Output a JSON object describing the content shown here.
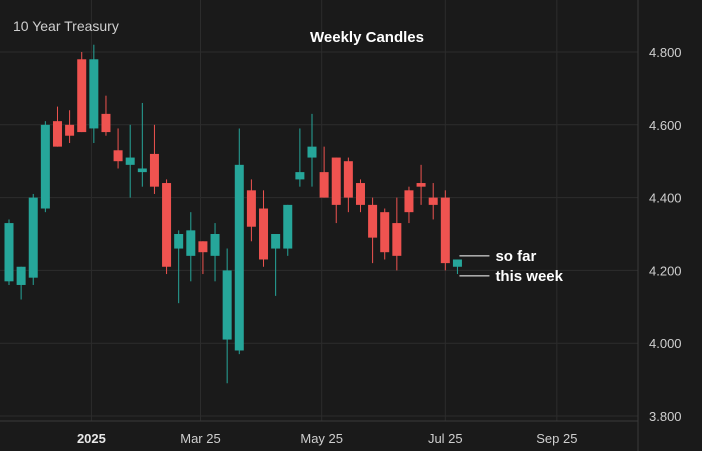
{
  "chart_data": {
    "type": "candlestick",
    "symbol": "10 Year Treasury",
    "title": "Weekly Candles",
    "ylim": [
      3.8,
      4.9
    ],
    "y_ticks": [
      "3.800",
      "4.000",
      "4.200",
      "4.400",
      "4.600",
      "4.800"
    ],
    "y_tick_values": [
      3.8,
      4.0,
      4.2,
      4.4,
      4.6,
      4.8
    ],
    "x_ticks": [
      {
        "label": "2025",
        "index": 6.8,
        "bold": true
      },
      {
        "label": "Mar 25",
        "index": 15.8,
        "bold": false
      },
      {
        "label": "May 25",
        "index": 25.8,
        "bold": false
      },
      {
        "label": "Jul 25",
        "index": 36.0,
        "bold": false
      },
      {
        "label": "Sep 25",
        "index": 45.2,
        "bold": false
      }
    ],
    "colors": {
      "up": "#26a69a",
      "down": "#ef5350"
    },
    "candles": [
      {
        "o": 4.17,
        "h": 4.34,
        "l": 4.16,
        "c": 4.33
      },
      {
        "o": 4.16,
        "h": 4.21,
        "l": 4.12,
        "c": 4.21
      },
      {
        "o": 4.18,
        "h": 4.41,
        "l": 4.16,
        "c": 4.4
      },
      {
        "o": 4.37,
        "h": 4.61,
        "l": 4.36,
        "c": 4.6
      },
      {
        "o": 4.61,
        "h": 4.65,
        "l": 4.54,
        "c": 4.54
      },
      {
        "o": 4.6,
        "h": 4.64,
        "l": 4.55,
        "c": 4.57
      },
      {
        "o": 4.78,
        "h": 4.8,
        "l": 4.58,
        "c": 4.58
      },
      {
        "o": 4.59,
        "h": 4.82,
        "l": 4.55,
        "c": 4.78
      },
      {
        "o": 4.63,
        "h": 4.68,
        "l": 4.57,
        "c": 4.58
      },
      {
        "o": 4.53,
        "h": 4.59,
        "l": 4.48,
        "c": 4.5
      },
      {
        "o": 4.49,
        "h": 4.6,
        "l": 4.4,
        "c": 4.51
      },
      {
        "o": 4.47,
        "h": 4.66,
        "l": 4.43,
        "c": 4.48
      },
      {
        "o": 4.52,
        "h": 4.6,
        "l": 4.41,
        "c": 4.43
      },
      {
        "o": 4.44,
        "h": 4.45,
        "l": 4.19,
        "c": 4.21
      },
      {
        "o": 4.26,
        "h": 4.31,
        "l": 4.11,
        "c": 4.3
      },
      {
        "o": 4.24,
        "h": 4.36,
        "l": 4.17,
        "c": 4.31
      },
      {
        "o": 4.28,
        "h": 4.28,
        "l": 4.19,
        "c": 4.25
      },
      {
        "o": 4.24,
        "h": 4.33,
        "l": 4.17,
        "c": 4.3
      },
      {
        "o": 4.01,
        "h": 4.26,
        "l": 3.89,
        "c": 4.2
      },
      {
        "o": 3.98,
        "h": 4.59,
        "l": 3.97,
        "c": 4.49
      },
      {
        "o": 4.42,
        "h": 4.45,
        "l": 4.28,
        "c": 4.32
      },
      {
        "o": 4.37,
        "h": 4.42,
        "l": 4.21,
        "c": 4.23
      },
      {
        "o": 4.26,
        "h": 4.3,
        "l": 4.13,
        "c": 4.3
      },
      {
        "o": 4.26,
        "h": 4.38,
        "l": 4.24,
        "c": 4.38
      },
      {
        "o": 4.45,
        "h": 4.59,
        "l": 4.43,
        "c": 4.47
      },
      {
        "o": 4.51,
        "h": 4.63,
        "l": 4.43,
        "c": 4.54
      },
      {
        "o": 4.47,
        "h": 4.54,
        "l": 4.4,
        "c": 4.4
      },
      {
        "o": 4.51,
        "h": 4.51,
        "l": 4.33,
        "c": 4.38
      },
      {
        "o": 4.5,
        "h": 4.51,
        "l": 4.36,
        "c": 4.4
      },
      {
        "o": 4.44,
        "h": 4.45,
        "l": 4.36,
        "c": 4.38
      },
      {
        "o": 4.38,
        "h": 4.4,
        "l": 4.22,
        "c": 4.29
      },
      {
        "o": 4.36,
        "h": 4.37,
        "l": 4.23,
        "c": 4.25
      },
      {
        "o": 4.33,
        "h": 4.4,
        "l": 4.2,
        "c": 4.24
      },
      {
        "o": 4.42,
        "h": 4.43,
        "l": 4.33,
        "c": 4.36
      },
      {
        "o": 4.44,
        "h": 4.49,
        "l": 4.38,
        "c": 4.43
      },
      {
        "o": 4.4,
        "h": 4.44,
        "l": 4.34,
        "c": 4.38
      },
      {
        "o": 4.4,
        "h": 4.42,
        "l": 4.2,
        "c": 4.22
      },
      {
        "o": 4.21,
        "h": 4.23,
        "l": 4.19,
        "c": 4.23
      }
    ],
    "annotations": [
      {
        "text": "so far",
        "price": 4.24
      },
      {
        "text": "this week",
        "price": 4.185
      }
    ]
  }
}
